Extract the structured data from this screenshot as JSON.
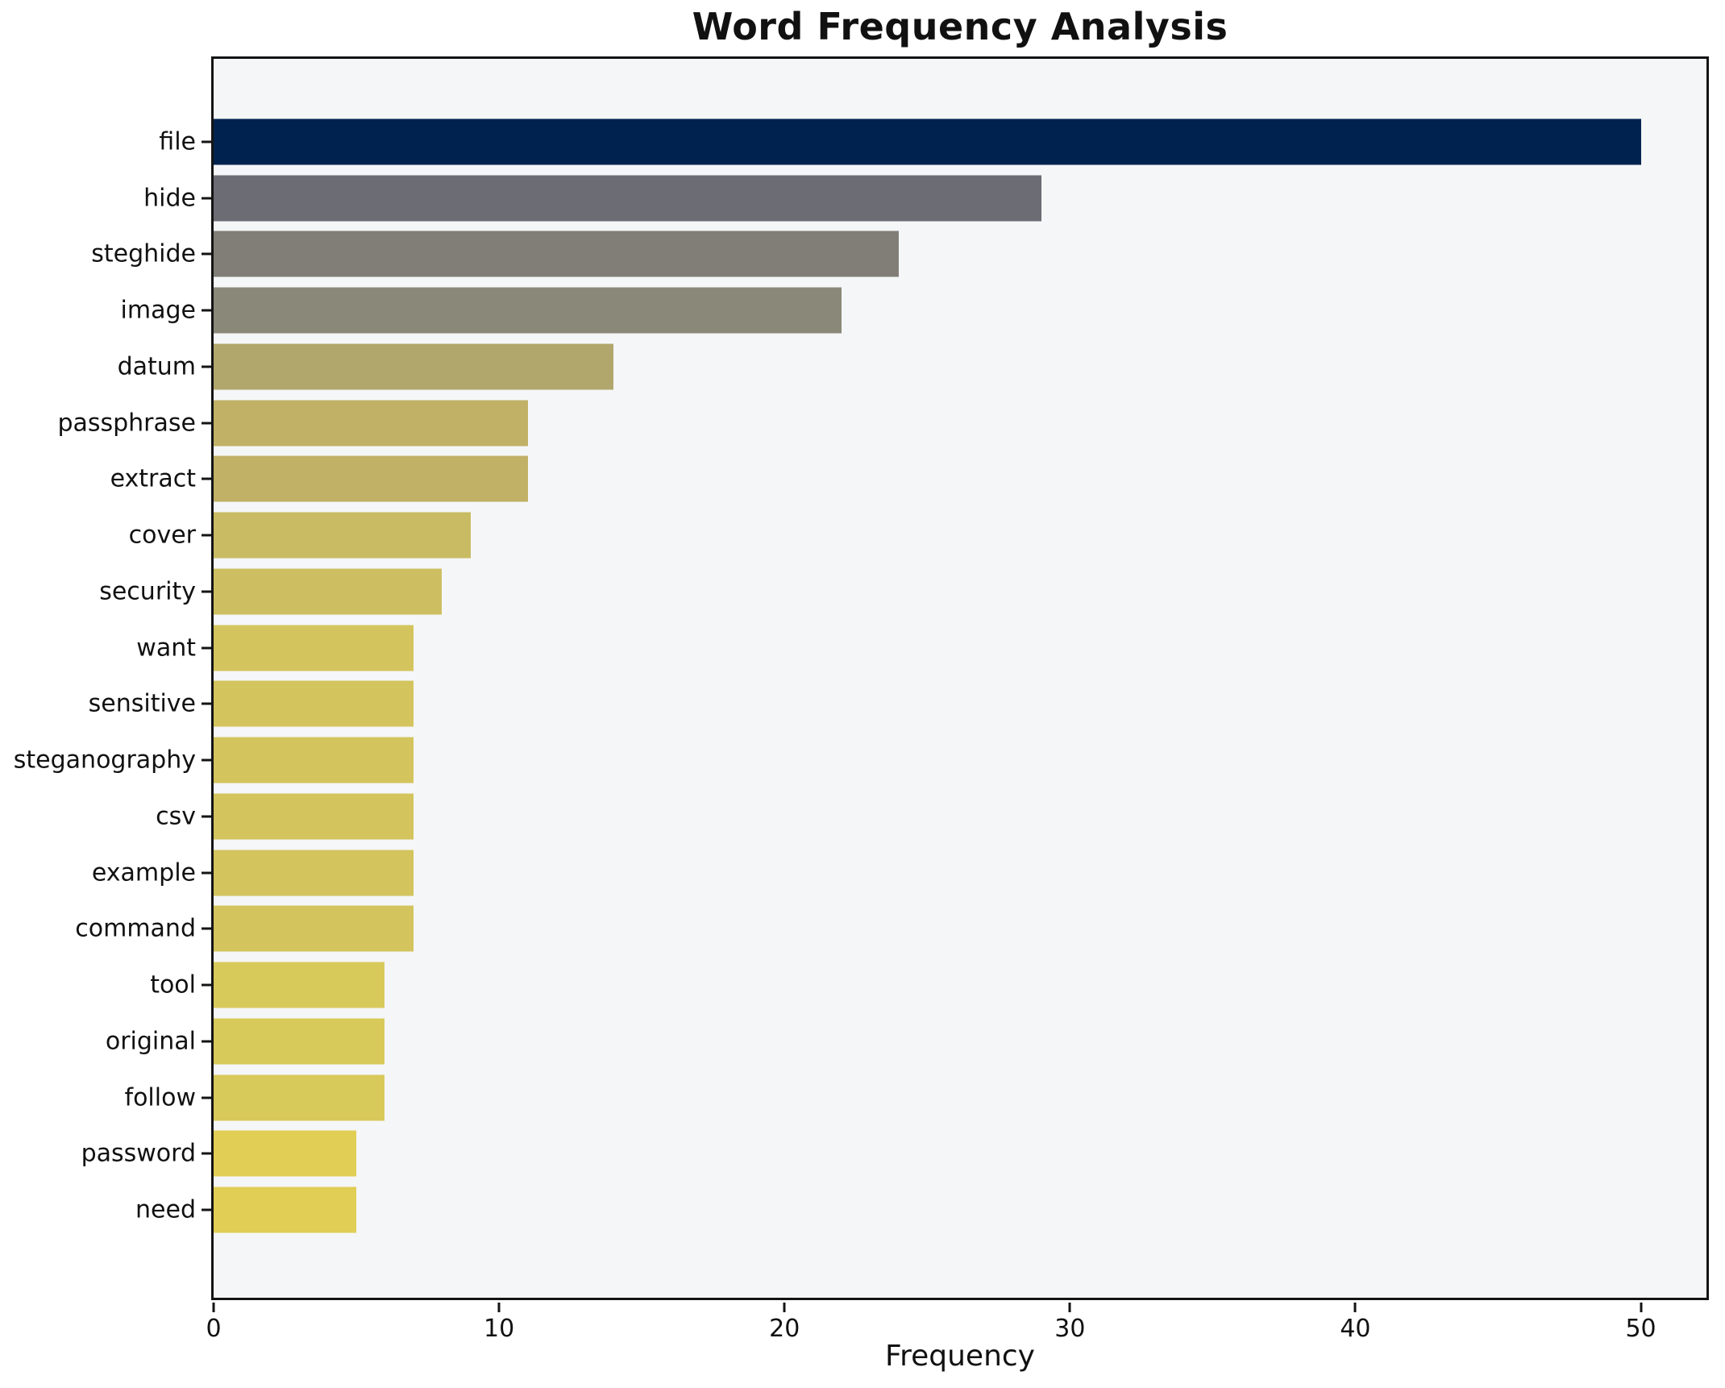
{
  "chart_data": {
    "type": "bar",
    "orientation": "horizontal",
    "title": "Word Frequency Analysis",
    "xlabel": "Frequency",
    "ylabel": "",
    "categories": [
      "file",
      "hide",
      "steghide",
      "image",
      "datum",
      "passphrase",
      "extract",
      "cover",
      "security",
      "want",
      "sensitive",
      "steganography",
      "csv",
      "example",
      "command",
      "tool",
      "original",
      "follow",
      "password",
      "need"
    ],
    "values": [
      50,
      29,
      24,
      22,
      14,
      11,
      11,
      9,
      8,
      7,
      7,
      7,
      7,
      7,
      7,
      6,
      6,
      6,
      5,
      5
    ],
    "bar_colors": [
      "#00224e",
      "#6c6c74",
      "#817e77",
      "#8a8878",
      "#b1a76d",
      "#c0b167",
      "#c0b167",
      "#c9bb63",
      "#cdbf61",
      "#d3c45e",
      "#d3c45e",
      "#d3c45e",
      "#d3c45e",
      "#d3c45e",
      "#d3c45e",
      "#d8c95b",
      "#d8c95b",
      "#d8c95b",
      "#e0ce55",
      "#e0ce55"
    ],
    "xticks": [
      0,
      10,
      20,
      30,
      40,
      50
    ],
    "xlim": [
      0,
      52.3
    ],
    "grid": false,
    "legend": false,
    "plot_background": "#f5f6f7",
    "spine_color": "#141414"
  }
}
